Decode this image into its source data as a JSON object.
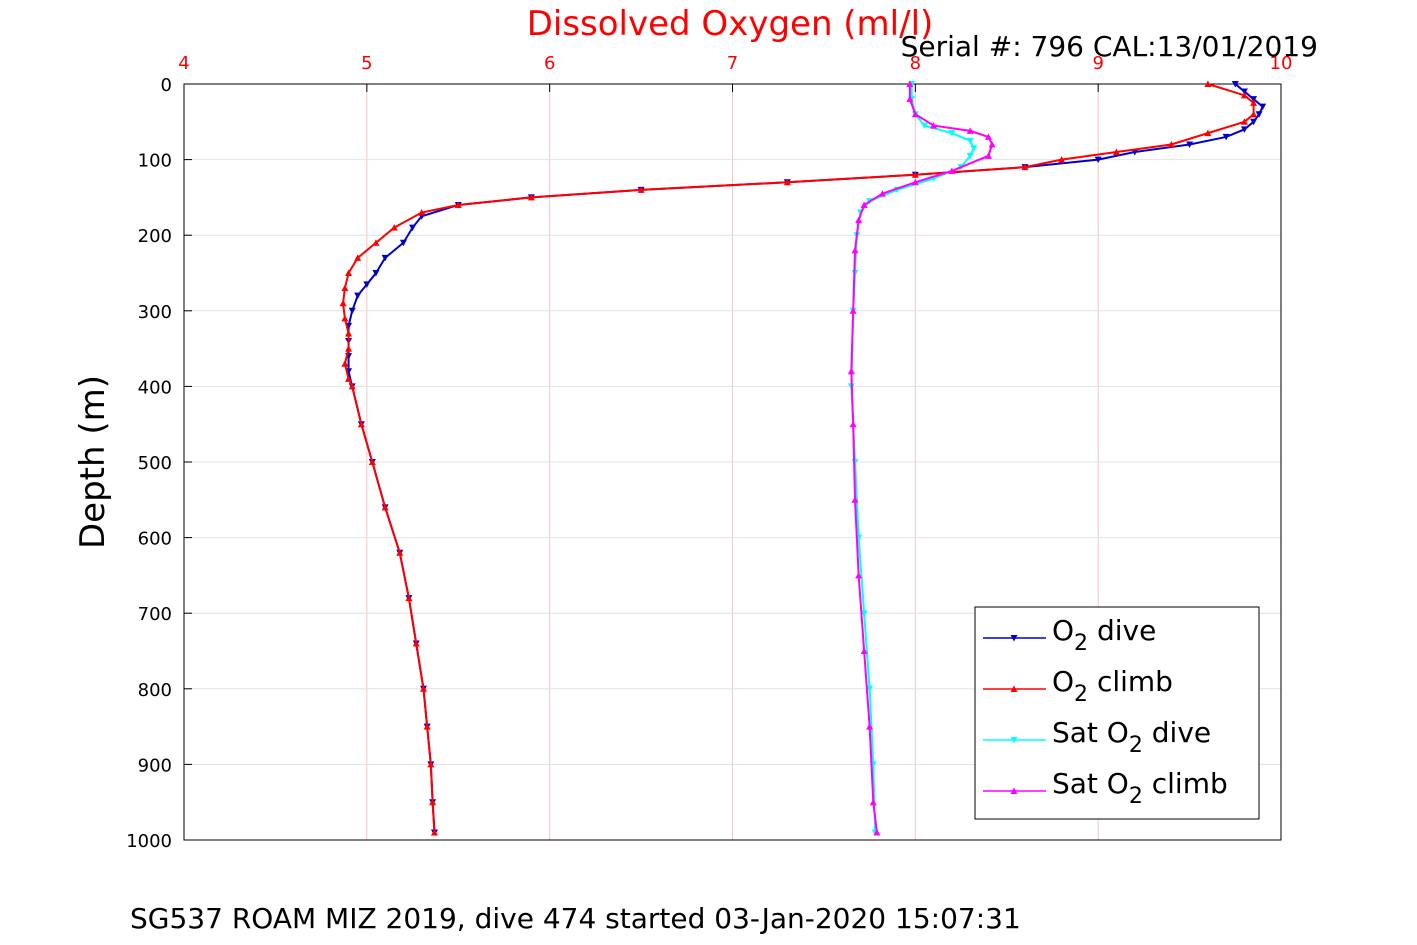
{
  "chart_data": {
    "type": "line",
    "title": "Dissolved Oxygen (ml/l)",
    "subtitle": "Serial #: 796  CAL:13/01/2019",
    "xlabel": "",
    "ylabel": "Depth (m)",
    "footer": "SG537 ROAM MIZ 2019, dive 474 started 03-Jan-2020 15:07:31",
    "xlim": [
      4,
      10
    ],
    "ylim": [
      0,
      1000
    ],
    "y_reversed": true,
    "x_axis_position": "top",
    "x_ticks": [
      "4",
      "5",
      "6",
      "7",
      "8",
      "9",
      "10"
    ],
    "y_ticks": [
      "0",
      "100",
      "200",
      "300",
      "400",
      "500",
      "600",
      "700",
      "800",
      "900",
      "1000"
    ],
    "grid": true,
    "legend_position": "bottom-right",
    "colors": {
      "title": "#ff0000",
      "x_ticks": "#ff0000",
      "grid": "#f5c6c6",
      "o2_dive": "#0000cc",
      "o2_climb": "#ff0000",
      "sat_dive": "#00ffff",
      "sat_climb": "#ff00ff"
    },
    "series": [
      {
        "name": "O2 dive",
        "legend": {
          "pre": "O",
          "sub": "2",
          "post": " dive"
        },
        "color": "#0000cc",
        "marker": "triangle-down",
        "points": [
          [
            9.75,
            0
          ],
          [
            9.8,
            10
          ],
          [
            9.85,
            20
          ],
          [
            9.9,
            30
          ],
          [
            9.88,
            40
          ],
          [
            9.85,
            50
          ],
          [
            9.8,
            60
          ],
          [
            9.7,
            70
          ],
          [
            9.5,
            80
          ],
          [
            9.2,
            90
          ],
          [
            9.0,
            100
          ],
          [
            8.6,
            110
          ],
          [
            8.0,
            120
          ],
          [
            7.3,
            130
          ],
          [
            6.5,
            140
          ],
          [
            5.9,
            150
          ],
          [
            5.5,
            160
          ],
          [
            5.3,
            175
          ],
          [
            5.25,
            190
          ],
          [
            5.2,
            210
          ],
          [
            5.1,
            230
          ],
          [
            5.05,
            250
          ],
          [
            5.0,
            265
          ],
          [
            4.95,
            280
          ],
          [
            4.92,
            300
          ],
          [
            4.9,
            320
          ],
          [
            4.9,
            340
          ],
          [
            4.9,
            360
          ],
          [
            4.9,
            380
          ],
          [
            4.92,
            400
          ],
          [
            4.97,
            450
          ],
          [
            5.03,
            500
          ],
          [
            5.1,
            560
          ],
          [
            5.18,
            620
          ],
          [
            5.23,
            680
          ],
          [
            5.27,
            740
          ],
          [
            5.31,
            800
          ],
          [
            5.33,
            850
          ],
          [
            5.35,
            900
          ],
          [
            5.36,
            950
          ],
          [
            5.37,
            990
          ]
        ]
      },
      {
        "name": "O2 climb",
        "legend": {
          "pre": "O",
          "sub": "2",
          "post": " climb"
        },
        "color": "#ff0000",
        "marker": "triangle-up",
        "points": [
          [
            9.6,
            0
          ],
          [
            9.8,
            15
          ],
          [
            9.85,
            25
          ],
          [
            9.85,
            40
          ],
          [
            9.8,
            50
          ],
          [
            9.6,
            65
          ],
          [
            9.4,
            80
          ],
          [
            9.1,
            90
          ],
          [
            8.8,
            100
          ],
          [
            8.6,
            110
          ],
          [
            8.0,
            120
          ],
          [
            7.3,
            130
          ],
          [
            6.5,
            140
          ],
          [
            5.9,
            150
          ],
          [
            5.5,
            160
          ],
          [
            5.3,
            170
          ],
          [
            5.15,
            190
          ],
          [
            5.05,
            210
          ],
          [
            4.95,
            230
          ],
          [
            4.9,
            250
          ],
          [
            4.88,
            270
          ],
          [
            4.87,
            290
          ],
          [
            4.88,
            310
          ],
          [
            4.9,
            330
          ],
          [
            4.9,
            350
          ],
          [
            4.88,
            370
          ],
          [
            4.9,
            390
          ],
          [
            4.92,
            400
          ],
          [
            4.97,
            450
          ],
          [
            5.03,
            500
          ],
          [
            5.1,
            560
          ],
          [
            5.18,
            620
          ],
          [
            5.23,
            680
          ],
          [
            5.27,
            740
          ],
          [
            5.31,
            800
          ],
          [
            5.33,
            850
          ],
          [
            5.35,
            900
          ],
          [
            5.36,
            950
          ],
          [
            5.37,
            990
          ]
        ]
      },
      {
        "name": "Sat O2 dive",
        "legend": {
          "pre": "Sat O",
          "sub": "2",
          "post": " dive"
        },
        "color": "#00ffff",
        "marker": "triangle-down",
        "points": [
          [
            7.98,
            0
          ],
          [
            7.98,
            20
          ],
          [
            8.0,
            40
          ],
          [
            8.05,
            55
          ],
          [
            8.2,
            65
          ],
          [
            8.3,
            75
          ],
          [
            8.32,
            85
          ],
          [
            8.3,
            95
          ],
          [
            8.25,
            110
          ],
          [
            8.1,
            125
          ],
          [
            7.9,
            140
          ],
          [
            7.75,
            155
          ],
          [
            7.7,
            170
          ],
          [
            7.68,
            200
          ],
          [
            7.67,
            250
          ],
          [
            7.66,
            300
          ],
          [
            7.65,
            400
          ],
          [
            7.67,
            500
          ],
          [
            7.69,
            600
          ],
          [
            7.72,
            700
          ],
          [
            7.75,
            800
          ],
          [
            7.77,
            900
          ],
          [
            7.78,
            990
          ]
        ]
      },
      {
        "name": "Sat O2 climb",
        "legend": {
          "pre": "Sat O",
          "sub": "2",
          "post": " climb"
        },
        "color": "#ff00ff",
        "marker": "triangle-up",
        "points": [
          [
            7.97,
            0
          ],
          [
            7.97,
            20
          ],
          [
            8.0,
            40
          ],
          [
            8.1,
            55
          ],
          [
            8.3,
            62
          ],
          [
            8.4,
            70
          ],
          [
            8.42,
            80
          ],
          [
            8.4,
            95
          ],
          [
            8.2,
            115
          ],
          [
            8.0,
            130
          ],
          [
            7.82,
            145
          ],
          [
            7.72,
            160
          ],
          [
            7.69,
            180
          ],
          [
            7.67,
            220
          ],
          [
            7.66,
            300
          ],
          [
            7.65,
            380
          ],
          [
            7.66,
            450
          ],
          [
            7.67,
            550
          ],
          [
            7.69,
            650
          ],
          [
            7.72,
            750
          ],
          [
            7.75,
            850
          ],
          [
            7.77,
            950
          ],
          [
            7.79,
            990
          ]
        ]
      }
    ]
  }
}
